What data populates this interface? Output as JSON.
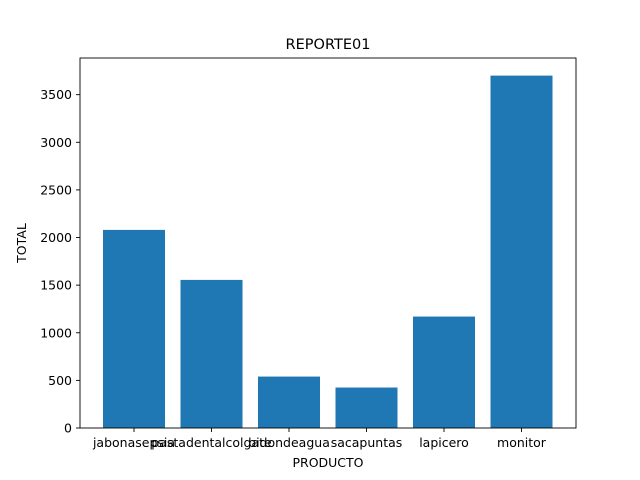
{
  "chart_data": {
    "type": "bar",
    "title": "REPORTE01",
    "xlabel": "PRODUCTO",
    "ylabel": "TOTAL",
    "categories": [
      "jabonasepsia",
      "pastadentalcolgate",
      "bidondeagua",
      "sacapuntas",
      "lapicero",
      "monitor"
    ],
    "values": [
      2080,
      1555,
      540,
      425,
      1170,
      3700
    ],
    "ylim": [
      0,
      3885
    ],
    "yticks": [
      0,
      500,
      1000,
      1500,
      2000,
      2500,
      3000,
      3500
    ],
    "grid": false,
    "bar_color": "#1f77b4"
  }
}
